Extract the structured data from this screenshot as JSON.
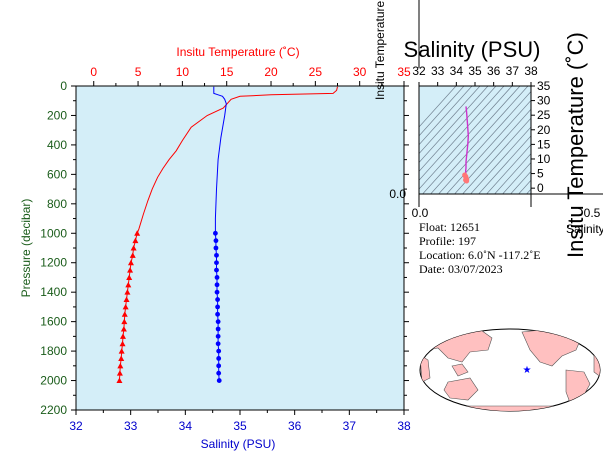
{
  "chart_data": [
    {
      "type": "line",
      "title": "",
      "x_top_label": "Insitu Temperature (˚C)",
      "x_bottom_label": "Salinity (PSU)",
      "ylabel": "Pressure (decibar)",
      "x_top_ticks": [
        "0",
        "5",
        "10",
        "15",
        "20",
        "25",
        "30",
        "35"
      ],
      "x_bottom_ticks": [
        "32",
        "33",
        "34",
        "35",
        "36",
        "37",
        "38"
      ],
      "y_ticks": [
        "0",
        "200",
        "400",
        "600",
        "800",
        "1000",
        "1200",
        "1400",
        "1600",
        "1800",
        "2000",
        "2200"
      ],
      "temperature_lim": [
        -2,
        35
      ],
      "salinity_lim": [
        32,
        38
      ],
      "pressure_lim": [
        0,
        2200
      ],
      "y_inverted": true,
      "grid": false,
      "series": [
        {
          "name": "Insitu Temperature",
          "color": "#ff0000",
          "marker": "triangle",
          "profile": [
            [
              27.5,
              5
            ],
            [
              27.4,
              30
            ],
            [
              27.0,
              50
            ],
            [
              20,
              60
            ],
            [
              16.5,
              70
            ],
            [
              15.5,
              90
            ],
            [
              14.6,
              150
            ],
            [
              12.8,
              200
            ],
            [
              11,
              280
            ],
            [
              10,
              370
            ],
            [
              9.3,
              440
            ],
            [
              8.5,
              500
            ],
            [
              7.8,
              560
            ],
            [
              7.2,
              620
            ],
            [
              6.6,
              700
            ],
            [
              6.1,
              780
            ],
            [
              5.6,
              870
            ],
            [
              5.1,
              970
            ],
            [
              4.9,
              1000
            ]
          ],
          "markers": [
            [
              4.9,
              1000
            ],
            [
              4.7,
              1050
            ],
            [
              4.5,
              1100
            ],
            [
              4.4,
              1150
            ],
            [
              4.2,
              1200
            ],
            [
              4.1,
              1250
            ],
            [
              4.0,
              1300
            ],
            [
              3.9,
              1350
            ],
            [
              3.8,
              1400
            ],
            [
              3.7,
              1450
            ],
            [
              3.6,
              1500
            ],
            [
              3.5,
              1550
            ],
            [
              3.45,
              1600
            ],
            [
              3.4,
              1650
            ],
            [
              3.3,
              1700
            ],
            [
              3.25,
              1750
            ],
            [
              3.15,
              1800
            ],
            [
              3.1,
              1850
            ],
            [
              3.0,
              1900
            ],
            [
              2.95,
              1950
            ],
            [
              2.9,
              2000
            ]
          ]
        },
        {
          "name": "Salinity",
          "color": "#0000ff",
          "marker": "circle",
          "profile": [
            [
              34.52,
              5
            ],
            [
              34.52,
              50
            ],
            [
              34.6,
              60
            ],
            [
              34.68,
              70
            ],
            [
              34.72,
              90
            ],
            [
              34.75,
              120
            ],
            [
              34.72,
              200
            ],
            [
              34.65,
              350
            ],
            [
              34.6,
              500
            ],
            [
              34.57,
              700
            ],
            [
              34.55,
              900
            ],
            [
              34.55,
              1000
            ]
          ],
          "markers": [
            [
              34.55,
              1000
            ],
            [
              34.56,
              1050
            ],
            [
              34.56,
              1100
            ],
            [
              34.57,
              1150
            ],
            [
              34.57,
              1200
            ],
            [
              34.57,
              1250
            ],
            [
              34.58,
              1300
            ],
            [
              34.58,
              1350
            ],
            [
              34.58,
              1400
            ],
            [
              34.59,
              1450
            ],
            [
              34.59,
              1500
            ],
            [
              34.59,
              1550
            ],
            [
              34.6,
              1600
            ],
            [
              34.6,
              1650
            ],
            [
              34.6,
              1700
            ],
            [
              34.6,
              1750
            ],
            [
              34.61,
              1800
            ],
            [
              34.61,
              1850
            ],
            [
              34.61,
              1900
            ],
            [
              34.61,
              1950
            ],
            [
              34.62,
              2000
            ]
          ]
        }
      ]
    },
    {
      "type": "scatter",
      "title": "Salinity (PSU)",
      "xlabel": "Salinity (PSU)",
      "ylabel": "Insitu Temperature",
      "ylabel_right": "Insitu Temperature (˚C)",
      "x_top_ticks": [
        "32",
        "33",
        "34",
        "35",
        "36",
        "37",
        "38"
      ],
      "y_right_ticks": [
        "0",
        "5",
        "10",
        "15",
        "20",
        "25",
        "30",
        "35"
      ],
      "x_bottom_tick_visible": "0.0",
      "x_bottom_tick_right": "0.5",
      "y_left_tick_visible": "0.0",
      "salinity_lim": [
        32,
        38
      ],
      "temperature_lim": [
        -2,
        35
      ],
      "series": [
        {
          "name": "TS",
          "color": "#cc33cc",
          "points": [
            [
              34.52,
              28
            ],
            [
              34.55,
              26
            ],
            [
              34.6,
              22
            ],
            [
              34.64,
              18
            ],
            [
              34.62,
              15.5
            ],
            [
              34.58,
              13
            ],
            [
              34.55,
              11
            ],
            [
              34.52,
              9
            ],
            [
              34.52,
              7
            ],
            [
              34.5,
              6
            ],
            [
              34.5,
              5
            ],
            [
              34.5,
              4
            ]
          ]
        },
        {
          "name": "deep",
          "color": "#ff7777",
          "points": [
            [
              34.45,
              4.5
            ],
            [
              34.5,
              4
            ],
            [
              34.52,
              3.5
            ],
            [
              34.55,
              3.0
            ],
            [
              34.5,
              2.8
            ],
            [
              34.55,
              2.5
            ]
          ]
        }
      ]
    }
  ],
  "info": {
    "float": "Float:  12651",
    "profile": "Profile:  197",
    "location": "Location:  6.0˚N  -117.2˚E",
    "date": "Date:  03/07/2023"
  },
  "map": {
    "marker_color": "#0000ff",
    "land_color": "#ffc0c0",
    "ocean_color": "#ffffff"
  }
}
